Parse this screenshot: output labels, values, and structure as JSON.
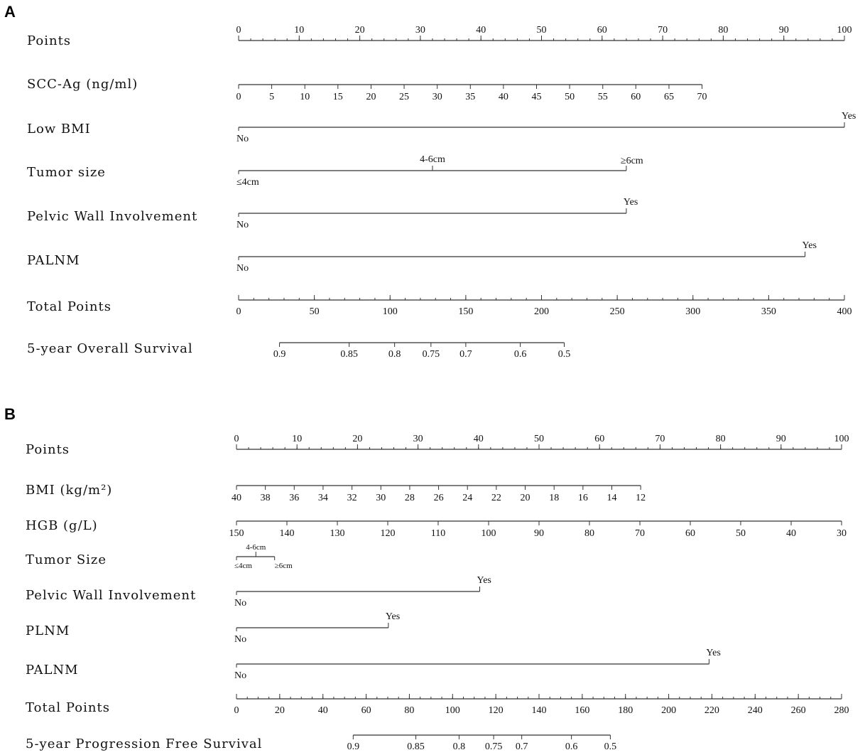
{
  "chart_data": [
    {
      "type": "nomogram",
      "panel_label": "A",
      "rows": [
        {
          "label": "Points",
          "kind": "points",
          "points_range": [
            0,
            100
          ],
          "ticks": [
            {
              "label": "0",
              "points": 0
            },
            {
              "label": "10",
              "points": 10
            },
            {
              "label": "20",
              "points": 20
            },
            {
              "label": "30",
              "points": 30
            },
            {
              "label": "40",
              "points": 40
            },
            {
              "label": "50",
              "points": 50
            },
            {
              "label": "60",
              "points": 60
            },
            {
              "label": "70",
              "points": 70
            },
            {
              "label": "80",
              "points": 80
            },
            {
              "label": "90",
              "points": 90
            },
            {
              "label": "100",
              "points": 100
            }
          ]
        },
        {
          "label": "SCC-Ag (ng/ml)",
          "kind": "continuous",
          "points_range": [
            0,
            76.5
          ],
          "ticks": [
            {
              "label": "0",
              "points": 0
            },
            {
              "label": "5",
              "points": 5.46
            },
            {
              "label": "10",
              "points": 10.93
            },
            {
              "label": "15",
              "points": 16.39
            },
            {
              "label": "20",
              "points": 21.86
            },
            {
              "label": "25",
              "points": 27.32
            },
            {
              "label": "30",
              "points": 32.79
            },
            {
              "label": "35",
              "points": 38.25
            },
            {
              "label": "40",
              "points": 43.71
            },
            {
              "label": "45",
              "points": 49.18
            },
            {
              "label": "50",
              "points": 54.64
            },
            {
              "label": "55",
              "points": 60.11
            },
            {
              "label": "60",
              "points": 65.57
            },
            {
              "label": "65",
              "points": 71.04
            },
            {
              "label": "70",
              "points": 76.5
            }
          ]
        },
        {
          "label": "Low BMI",
          "kind": "categorical",
          "levels": [
            {
              "label": "No",
              "points": 0,
              "pos": "below"
            },
            {
              "label": "Yes",
              "points": 100,
              "pos": "above"
            }
          ]
        },
        {
          "label": "Tumor size",
          "kind": "categorical",
          "levels": [
            {
              "label": "≤4cm",
              "points": 0,
              "pos": "below"
            },
            {
              "label": "4-6cm",
              "points": 32,
              "pos": "above"
            },
            {
              "label": "≥6cm",
              "points": 64,
              "pos": "above"
            }
          ]
        },
        {
          "label": "Pelvic Wall Involvement",
          "kind": "categorical",
          "levels": [
            {
              "label": "No",
              "points": 0,
              "pos": "below"
            },
            {
              "label": "Yes",
              "points": 64,
              "pos": "above"
            }
          ]
        },
        {
          "label": "PALNM",
          "kind": "categorical",
          "levels": [
            {
              "label": "No",
              "points": 0,
              "pos": "below"
            },
            {
              "label": "Yes",
              "points": 93.5,
              "pos": "above"
            }
          ]
        },
        {
          "label": "Total Points",
          "kind": "total",
          "total_range": [
            0,
            400
          ],
          "ticks": [
            {
              "label": "0",
              "total": 0
            },
            {
              "label": "50",
              "total": 50
            },
            {
              "label": "100",
              "total": 100
            },
            {
              "label": "150",
              "total": 150
            },
            {
              "label": "200",
              "total": 200
            },
            {
              "label": "250",
              "total": 250
            },
            {
              "label": "300",
              "total": 300
            },
            {
              "label": "350",
              "total": 350
            },
            {
              "label": "400",
              "total": 400
            }
          ]
        },
        {
          "label": "5-year Overall Survival",
          "kind": "probability",
          "total_range": [
            27,
            215
          ],
          "ticks": [
            {
              "label": "0.9",
              "total": 27
            },
            {
              "label": "0.85",
              "total": 73
            },
            {
              "label": "0.8",
              "total": 103
            },
            {
              "label": "0.75",
              "total": 127
            },
            {
              "label": "0.7",
              "total": 150
            },
            {
              "label": "0.6",
              "total": 186
            },
            {
              "label": "0.5",
              "total": 215
            }
          ]
        }
      ]
    },
    {
      "type": "nomogram",
      "panel_label": "B",
      "rows": [
        {
          "label": "Points",
          "kind": "points",
          "points_range": [
            0,
            100
          ],
          "ticks": [
            {
              "label": "0",
              "points": 0
            },
            {
              "label": "10",
              "points": 10
            },
            {
              "label": "20",
              "points": 20
            },
            {
              "label": "30",
              "points": 30
            },
            {
              "label": "40",
              "points": 40
            },
            {
              "label": "50",
              "points": 50
            },
            {
              "label": "60",
              "points": 60
            },
            {
              "label": "70",
              "points": 70
            },
            {
              "label": "80",
              "points": 80
            },
            {
              "label": "90",
              "points": 90
            },
            {
              "label": "100",
              "points": 100
            }
          ]
        },
        {
          "label": "BMI (kg/m²)",
          "kind": "continuous",
          "points_range": [
            0,
            66.8
          ],
          "ticks": [
            {
              "label": "40",
              "points": 0
            },
            {
              "label": "38",
              "points": 4.77
            },
            {
              "label": "36",
              "points": 9.54
            },
            {
              "label": "34",
              "points": 14.31
            },
            {
              "label": "32",
              "points": 19.09
            },
            {
              "label": "30",
              "points": 23.86
            },
            {
              "label": "28",
              "points": 28.63
            },
            {
              "label": "26",
              "points": 33.4
            },
            {
              "label": "24",
              "points": 38.17
            },
            {
              "label": "22",
              "points": 42.94
            },
            {
              "label": "20",
              "points": 47.71
            },
            {
              "label": "18",
              "points": 52.49
            },
            {
              "label": "16",
              "points": 57.26
            },
            {
              "label": "14",
              "points": 62.03
            },
            {
              "label": "12",
              "points": 66.8
            }
          ]
        },
        {
          "label": "HGB (g/L)",
          "kind": "continuous",
          "points_range": [
            0,
            100
          ],
          "ticks": [
            {
              "label": "150",
              "points": 0
            },
            {
              "label": "140",
              "points": 8.33
            },
            {
              "label": "130",
              "points": 16.67
            },
            {
              "label": "120",
              "points": 25
            },
            {
              "label": "110",
              "points": 33.33
            },
            {
              "label": "100",
              "points": 41.67
            },
            {
              "label": "90",
              "points": 50
            },
            {
              "label": "80",
              "points": 58.33
            },
            {
              "label": "70",
              "points": 66.67
            },
            {
              "label": "60",
              "points": 75
            },
            {
              "label": "50",
              "points": 83.33
            },
            {
              "label": "40",
              "points": 91.67
            },
            {
              "label": "30",
              "points": 100
            }
          ]
        },
        {
          "label": "Tumor Size",
          "kind": "categorical",
          "small": true,
          "levels": [
            {
              "label": "≤4cm",
              "points": 0,
              "pos": "below"
            },
            {
              "label": "4-6cm",
              "points": 3.2,
              "pos": "above"
            },
            {
              "label": "≥6cm",
              "points": 6.3,
              "pos": "below"
            }
          ]
        },
        {
          "label": "Pelvic Wall Involvement",
          "kind": "categorical",
          "levels": [
            {
              "label": "No",
              "points": 0,
              "pos": "below"
            },
            {
              "label": "Yes",
              "points": 40.2,
              "pos": "above"
            }
          ]
        },
        {
          "label": "PLNM",
          "kind": "categorical",
          "levels": [
            {
              "label": "No",
              "points": 0,
              "pos": "below"
            },
            {
              "label": "Yes",
              "points": 25.1,
              "pos": "above"
            }
          ]
        },
        {
          "label": "PALNM",
          "kind": "categorical",
          "levels": [
            {
              "label": "No",
              "points": 0,
              "pos": "below"
            },
            {
              "label": "Yes",
              "points": 78.1,
              "pos": "above"
            }
          ]
        },
        {
          "label": "Total Points",
          "kind": "total",
          "total_range": [
            0,
            280
          ],
          "ticks": [
            {
              "label": "0",
              "total": 0
            },
            {
              "label": "20",
              "total": 20
            },
            {
              "label": "40",
              "total": 40
            },
            {
              "label": "60",
              "total": 60
            },
            {
              "label": "80",
              "total": 80
            },
            {
              "label": "100",
              "total": 100
            },
            {
              "label": "120",
              "total": 120
            },
            {
              "label": "140",
              "total": 140
            },
            {
              "label": "160",
              "total": 160
            },
            {
              "label": "180",
              "total": 180
            },
            {
              "label": "200",
              "total": 200
            },
            {
              "label": "220",
              "total": 220
            },
            {
              "label": "240",
              "total": 240
            },
            {
              "label": "260",
              "total": 260
            },
            {
              "label": "280",
              "total": 280
            }
          ]
        },
        {
          "label": "5-year Progression Free Survival",
          "kind": "probability",
          "total_range": [
            54,
            173
          ],
          "ticks": [
            {
              "label": "0.9",
              "total": 54
            },
            {
              "label": "0.85",
              "total": 83
            },
            {
              "label": "0.8",
              "total": 103
            },
            {
              "label": "0.75",
              "total": 119
            },
            {
              "label": "0.7",
              "total": 132
            },
            {
              "label": "0.6",
              "total": 155
            },
            {
              "label": "0.5",
              "total": 173
            }
          ]
        }
      ]
    }
  ]
}
